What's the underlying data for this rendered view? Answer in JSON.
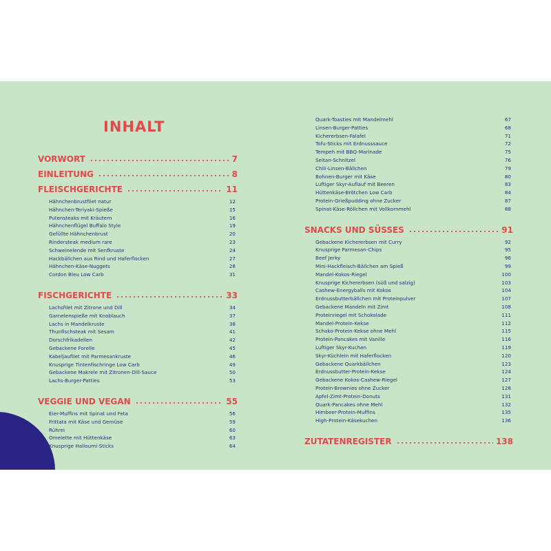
{
  "title": "INHALT",
  "left": {
    "sections": [
      {
        "heading": "VORWORT",
        "page": 7,
        "items": []
      },
      {
        "heading": "EINLEITUNG",
        "page": 8,
        "items": []
      },
      {
        "heading": "FLEISCHGERICHTE",
        "page": 11,
        "items": [
          {
            "name": "Hähnchenbrustfilet natur",
            "page": 12
          },
          {
            "name": "Hähnchen-Teriyaki-Spieße",
            "page": 15
          },
          {
            "name": "Putensteaks mit Kräutern",
            "page": 16
          },
          {
            "name": "Hähnchenflügel Buffalo Style",
            "page": 19
          },
          {
            "name": "Gefüllte Hähnchenbrust",
            "page": 20
          },
          {
            "name": "Rindersteak medium rare",
            "page": 23
          },
          {
            "name": "Schweinelende mit Senfkruste",
            "page": 24
          },
          {
            "name": "Hackbällchen aus Rind und Haferflocken",
            "page": 27
          },
          {
            "name": "Hähnchen-Käse-Nuggets",
            "page": 28
          },
          {
            "name": "Cordon Bleu Low Carb",
            "page": 31
          }
        ]
      },
      {
        "heading": "FISCHGERICHTE",
        "page": 33,
        "items": [
          {
            "name": "Lachsfilet mit Zitrone und Dill",
            "page": 34
          },
          {
            "name": "Garnelenspieße mit Knoblauch",
            "page": 37
          },
          {
            "name": "Lachs in Mandelkruste",
            "page": 38
          },
          {
            "name": "Thunfischsteak mit Sesam",
            "page": 41
          },
          {
            "name": "Dorschfrikadellen",
            "page": 42
          },
          {
            "name": "Gebackene Forelle",
            "page": 45
          },
          {
            "name": "Kabeljaufilet mit Parmesankruste",
            "page": 46
          },
          {
            "name": "Knusprige Tintenfischringe Low Carb",
            "page": 49
          },
          {
            "name": "Gebackene Makrele mit Zitronen-Dill-Sauce",
            "page": 50
          },
          {
            "name": "Lachs-Burger-Patties",
            "page": 53
          }
        ]
      },
      {
        "heading": "VEGGIE UND VEGAN",
        "page": 55,
        "items": [
          {
            "name": "Eier-Muffins mit Spinat und Feta",
            "page": 56
          },
          {
            "name": "Frittata mit Käse und Gemüse",
            "page": 59
          },
          {
            "name": "Rührei",
            "page": 60
          },
          {
            "name": "Omelette mit Hüttenkäse",
            "page": 63
          },
          {
            "name": "Knusprige Halloumi-Sticks",
            "page": 64
          }
        ]
      }
    ]
  },
  "right": {
    "sections": [
      {
        "items": [
          {
            "name": "Quark-Toasties mit Mandelmehl",
            "page": 67
          },
          {
            "name": "Linsen-Burger-Patties",
            "page": 68
          },
          {
            "name": "Kichererbsen-Falafel",
            "page": 71
          },
          {
            "name": "Tofu-Sticks mit Erdnusssauce",
            "page": 72
          },
          {
            "name": "Tempeh mit BBQ-Marinade",
            "page": 75
          },
          {
            "name": "Seitan-Schnitzel",
            "page": 76
          },
          {
            "name": "Chili-Linsen-Bällchen",
            "page": 79
          },
          {
            "name": "Bohnen-Burger mit Käse",
            "page": 80
          },
          {
            "name": "Luftiger Skyr-Auflauf mit Beeren",
            "page": 83
          },
          {
            "name": "Hüttenkäse-Brötchen Low Carb",
            "page": 84
          },
          {
            "name": "Protein-Grießpudding ohne Zucker",
            "page": 87
          },
          {
            "name": "Spinat-Käse-Röllchen mit Vollkornmehl",
            "page": 88
          }
        ]
      },
      {
        "heading": "SNACKS UND SÜSSES",
        "page": 91,
        "items": [
          {
            "name": "Gebackene Kichererbsen mit Curry",
            "page": 92
          },
          {
            "name": "Knusprige Parmesan-Chips",
            "page": 95
          },
          {
            "name": "Beef Jerky",
            "page": 96
          },
          {
            "name": "Mini-Hackfleisch-Bällchen am Spieß",
            "page": 99
          },
          {
            "name": "Mandel-Kokos-Riegel",
            "page": 100
          },
          {
            "name": "Knusprige Kichererbsen (süß und salzig)",
            "page": 103
          },
          {
            "name": "Cashew-Energyballs mit Kokos",
            "page": 104
          },
          {
            "name": "Erdnussbutterbällchen mit Proteinpulver",
            "page": 107
          },
          {
            "name": "Gebackene Mandeln mit Zimt",
            "page": 108
          },
          {
            "name": "Proteinriegel mit Schokolade",
            "page": 111
          },
          {
            "name": "Mandel-Protein-Kekse",
            "page": 112
          },
          {
            "name": "Schoko-Protein-Kekse ohne Mehl",
            "page": 115
          },
          {
            "name": "Protein-Pancakes mit Vanille",
            "page": 116
          },
          {
            "name": "Luftiger Skyr-Kuchen",
            "page": 119
          },
          {
            "name": "Skyr-Küchlein mit Haferflocken",
            "page": 120
          },
          {
            "name": "Gebackene Quarkbällchen",
            "page": 123
          },
          {
            "name": "Erdnussbutter-Protein-Kekse",
            "page": 124
          },
          {
            "name": "Gebackene Kokos-Cashew-Riegel",
            "page": 127
          },
          {
            "name": "Protein-Brownies ohne Zucker",
            "page": 128
          },
          {
            "name": "Apfel-Zimt-Protein-Donuts",
            "page": 131
          },
          {
            "name": "Quark-Pancakes ohne Mehl",
            "page": 132
          },
          {
            "name": "Himbeer-Protein-Muffins",
            "page": 135
          },
          {
            "name": "High-Protein-Käsekuchen",
            "page": 136
          }
        ]
      },
      {
        "heading": "ZUTATENREGISTER",
        "page": 138,
        "items": []
      }
    ]
  }
}
